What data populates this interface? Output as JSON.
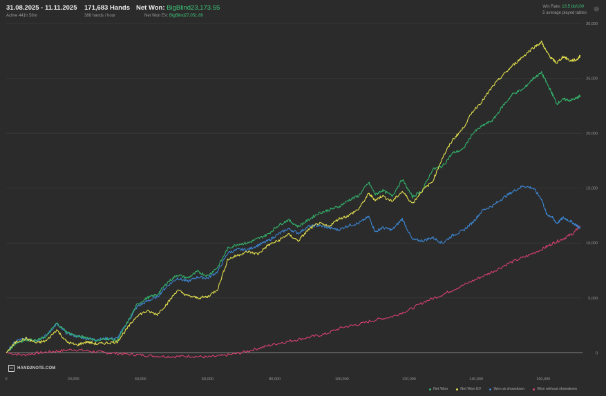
{
  "header": {
    "date_range": "31.08.2025 - 11.11.2025",
    "active": "Active 441h 58m",
    "hands": "171,683 Hands",
    "hands_rate": "388 hands / hour",
    "net_won_label": "Net Won:",
    "net_won_value": "BigBlind23,173.55",
    "net_won_ev_label": "Net Won  EV:",
    "net_won_ev_value": "BigBlind27,051.89",
    "win_rate_label": "Win Rate:",
    "win_rate_value": "13.5 bb/100",
    "tables": "5 average played tables"
  },
  "logo": {
    "text": "HAND2NOTE.COM"
  },
  "icons": {
    "settings": "gear-icon",
    "logo": "hand2note-logo-icon"
  },
  "colors": {
    "net_won": "#33b36b",
    "net_won_ev": "#e2df4e",
    "won_at_showdown": "#3c86d3",
    "won_without_showdown": "#d8416f",
    "grid": "#3d3d3d",
    "zero_line": "#8a8a8a"
  },
  "chart_data": {
    "type": "line",
    "xlim": [
      0,
      171683
    ],
    "ylim": [
      -1800,
      30000
    ],
    "x_ticks": [
      0,
      20000,
      40000,
      60000,
      80000,
      100000,
      120000,
      140000,
      160000
    ],
    "x_tick_labels": [
      "0",
      "20,000",
      "40,000",
      "60,000",
      "80,000",
      "100,000",
      "120,000",
      "140,000",
      "160,000"
    ],
    "y_ticks": [
      0,
      5000,
      10000,
      15000,
      20000,
      25000,
      30000
    ],
    "y_tick_labels": [
      "0",
      "5,000",
      "10,000",
      "15,000",
      "20,000",
      "25,000",
      "30,000"
    ],
    "grid": true,
    "legend_position": "bottom-right",
    "series": [
      {
        "name": "Net Won",
        "color": "#33b36b",
        "x": [
          0,
          3000,
          6000,
          9000,
          12000,
          15000,
          18000,
          21000,
          24000,
          27000,
          30000,
          33000,
          36000,
          39000,
          42000,
          45000,
          48000,
          51000,
          54000,
          57000,
          60000,
          63000,
          66000,
          69000,
          72000,
          75000,
          78000,
          81000,
          84000,
          87000,
          90000,
          93000,
          96000,
          99000,
          102000,
          105000,
          108000,
          110000,
          112000,
          115000,
          118000,
          121000,
          124000,
          127000,
          130000,
          133000,
          136000,
          139000,
          142000,
          145000,
          148000,
          151000,
          154000,
          157000,
          159500,
          161000,
          162500,
          164000,
          166000,
          168000,
          170000,
          171000
        ],
        "values": [
          0,
          900,
          1200,
          1100,
          1500,
          2700,
          1900,
          1500,
          1400,
          1100,
          1300,
          1100,
          2700,
          4400,
          5000,
          5300,
          6400,
          7100,
          6800,
          7400,
          7000,
          7800,
          9500,
          9900,
          10000,
          10400,
          10800,
          11600,
          12100,
          11500,
          12100,
          12700,
          13000,
          13300,
          13900,
          14300,
          15500,
          14400,
          14800,
          14300,
          15800,
          14200,
          14800,
          16700,
          17000,
          18200,
          18500,
          20000,
          20700,
          21200,
          22500,
          23600,
          24000,
          25000,
          25500,
          24600,
          23700,
          22700,
          23100,
          23000,
          23200,
          23400
        ]
      },
      {
        "name": "Net Won  EV",
        "color": "#e2df4e",
        "x": [
          0,
          3000,
          6000,
          9000,
          12000,
          15000,
          18000,
          21000,
          24000,
          27000,
          30000,
          33000,
          36000,
          39000,
          42000,
          45000,
          48000,
          51000,
          54000,
          57000,
          60000,
          63000,
          66000,
          69000,
          72000,
          75000,
          78000,
          81000,
          84000,
          87000,
          90000,
          93000,
          96000,
          99000,
          102000,
          105000,
          108000,
          110000,
          112000,
          115000,
          118000,
          121000,
          124000,
          127000,
          130000,
          133000,
          136000,
          139000,
          142000,
          145000,
          148000,
          151000,
          154000,
          157000,
          159500,
          161000,
          162500,
          164000,
          166000,
          168000,
          170000,
          171000
        ],
        "values": [
          0,
          1000,
          1300,
          900,
          1100,
          2100,
          1000,
          700,
          1000,
          800,
          900,
          1000,
          2200,
          3400,
          3800,
          3500,
          4500,
          5700,
          5200,
          5000,
          5100,
          5800,
          8500,
          8900,
          9200,
          9000,
          9800,
          10200,
          10800,
          10200,
          11200,
          11800,
          11500,
          12200,
          12500,
          13100,
          14500,
          13900,
          14300,
          13800,
          14700,
          13600,
          14800,
          15600,
          17800,
          19400,
          20400,
          22000,
          23000,
          24300,
          25300,
          26200,
          27000,
          27800,
          28300,
          27400,
          26800,
          26400,
          27000,
          26600,
          26700,
          27050
        ]
      },
      {
        "name": "Won at showdown",
        "color": "#3c86d3",
        "x": [
          0,
          3000,
          6000,
          9000,
          12000,
          15000,
          18000,
          21000,
          24000,
          27000,
          30000,
          33000,
          36000,
          39000,
          42000,
          45000,
          48000,
          51000,
          54000,
          57000,
          60000,
          63000,
          66000,
          69000,
          72000,
          75000,
          78000,
          81000,
          84000,
          87000,
          90000,
          93000,
          96000,
          99000,
          102000,
          105000,
          108000,
          110000,
          112000,
          115000,
          118000,
          121000,
          124000,
          127000,
          130000,
          133000,
          136000,
          139000,
          142000,
          145000,
          148000,
          151000,
          154000,
          157000,
          159500,
          161000,
          162500,
          164000,
          166000,
          168000,
          170000,
          171000
        ],
        "values": [
          0,
          1100,
          1300,
          1100,
          1600,
          2600,
          1800,
          1500,
          1300,
          1200,
          1300,
          1300,
          2700,
          4200,
          4700,
          5100,
          6100,
          6800,
          6500,
          6900,
          6800,
          7400,
          9100,
          9400,
          9400,
          9800,
          10200,
          10800,
          11300,
          10900,
          11500,
          11600,
          11400,
          11200,
          11600,
          11800,
          12400,
          11000,
          11400,
          11200,
          12200,
          10300,
          10200,
          10500,
          10000,
          10700,
          11100,
          11900,
          13000,
          13400,
          14100,
          14700,
          15200,
          15000,
          14000,
          12600,
          12400,
          11800,
          12300,
          12000,
          11600,
          11300
        ]
      },
      {
        "name": "Won without showdown",
        "color": "#d8416f",
        "x": [
          0,
          5000,
          10000,
          15000,
          20000,
          25000,
          30000,
          35000,
          40000,
          45000,
          50000,
          55000,
          60000,
          65000,
          70000,
          75000,
          80000,
          85000,
          90000,
          95000,
          100000,
          105000,
          110000,
          115000,
          120000,
          125000,
          130000,
          135000,
          140000,
          145000,
          150000,
          155000,
          160000,
          163000,
          166000,
          169000,
          171000
        ],
        "values": [
          0,
          -200,
          0,
          150,
          300,
          150,
          0,
          -100,
          -200,
          -300,
          -350,
          -300,
          -400,
          -250,
          0,
          400,
          800,
          1100,
          1400,
          1700,
          2300,
          2600,
          3000,
          3300,
          3900,
          4700,
          5300,
          6000,
          6700,
          7400,
          8200,
          8800,
          9500,
          10000,
          10400,
          10900,
          11600
        ]
      }
    ]
  }
}
